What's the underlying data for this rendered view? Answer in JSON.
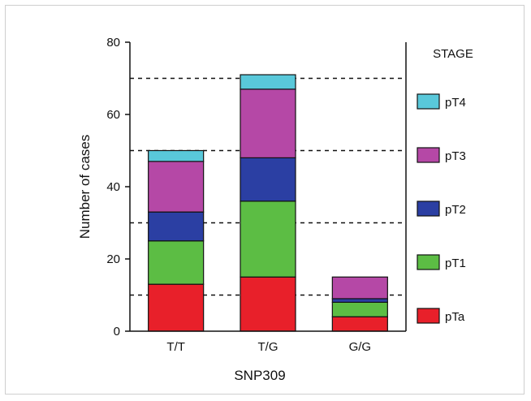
{
  "chart_data": {
    "type": "bar",
    "stacked": true,
    "title": "",
    "xlabel": "SNP309",
    "ylabel": "Number of cases",
    "ylim": [
      0,
      80
    ],
    "yticks": [
      "0",
      "20",
      "40",
      "60",
      "80"
    ],
    "categories": [
      "T/T",
      "T/G",
      "G/G"
    ],
    "legend_title": "STAGE",
    "legend_position": "right",
    "reference_lines": [
      10,
      30,
      50,
      70
    ],
    "series": [
      {
        "name": "pTa",
        "color": "#e8202a",
        "values": [
          13,
          15,
          4
        ]
      },
      {
        "name": "pT1",
        "color": "#5cbd44",
        "values": [
          12,
          21,
          4
        ]
      },
      {
        "name": "pT2",
        "color": "#2b3fa3",
        "values": [
          8,
          12,
          1
        ]
      },
      {
        "name": "pT3",
        "color": "#b548a6",
        "values": [
          14,
          19,
          6
        ]
      },
      {
        "name": "pT4",
        "color": "#59c8da",
        "values": [
          3,
          4,
          0
        ]
      }
    ]
  }
}
